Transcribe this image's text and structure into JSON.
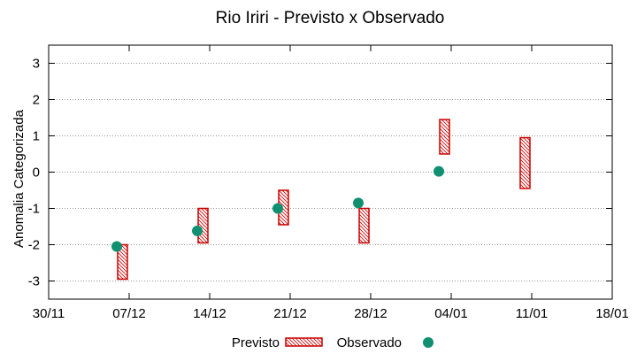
{
  "chart_data": {
    "type": "range-bar-with-points",
    "title": "Rio Iriri - Previsto x Observado",
    "xlabel": "",
    "ylabel": "Anomalia Categorizada",
    "x_ticks": [
      "30/11",
      "07/12",
      "14/12",
      "21/12",
      "28/12",
      "04/01",
      "11/01",
      "18/01"
    ],
    "ylim": [
      -3.5,
      3.5
    ],
    "y_ticks": [
      -3,
      -2,
      -1,
      0,
      1,
      2,
      3
    ],
    "grid": "horizontal-dotted",
    "legend_position": "bottom",
    "series": [
      {
        "name": "Previsto",
        "kind": "hatched-range",
        "color": "#cc0000",
        "points": [
          {
            "x_index": 1,
            "low": -2.95,
            "high": -2.0
          },
          {
            "x_index": 2,
            "low": -1.95,
            "high": -1.0
          },
          {
            "x_index": 3,
            "low": -1.45,
            "high": -0.5
          },
          {
            "x_index": 4,
            "low": -1.95,
            "high": -1.0
          },
          {
            "x_index": 5,
            "low": 0.5,
            "high": 1.45
          },
          {
            "x_index": 6,
            "low": -0.45,
            "high": 0.95
          }
        ]
      },
      {
        "name": "Observado",
        "kind": "point",
        "color": "#109070",
        "points": [
          {
            "x_index": 1,
            "y": -2.05
          },
          {
            "x_index": 2,
            "y": -1.62
          },
          {
            "x_index": 3,
            "y": -1.0
          },
          {
            "x_index": 4,
            "y": -0.85
          },
          {
            "x_index": 5,
            "y": 0.02
          }
        ]
      }
    ]
  }
}
